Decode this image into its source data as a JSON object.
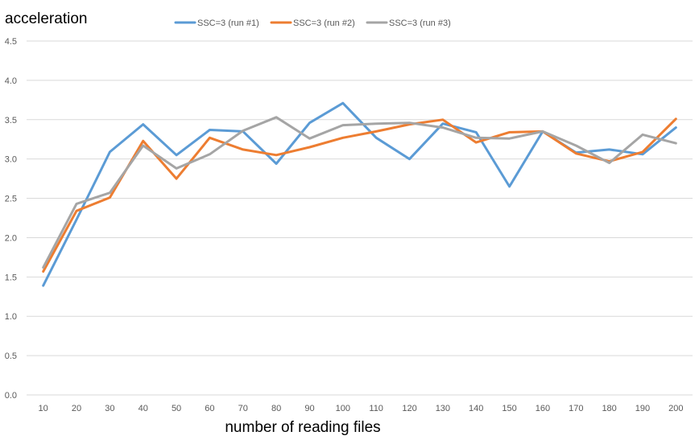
{
  "chart_data": {
    "type": "line",
    "title": "",
    "ylabel": "acceleration",
    "xlabel": "number of reading files",
    "ylim": [
      0,
      4.5
    ],
    "y_ticks": [
      "0.0",
      "0.5",
      "1.0",
      "1.5",
      "2.0",
      "2.5",
      "3.0",
      "3.5",
      "4.0",
      "4.5"
    ],
    "y_tick_values": [
      0,
      0.5,
      1.0,
      1.5,
      2.0,
      2.5,
      3.0,
      3.5,
      4.0,
      4.5
    ],
    "categories": [
      "10",
      "20",
      "30",
      "40",
      "50",
      "60",
      "70",
      "80",
      "90",
      "100",
      "110",
      "120",
      "130",
      "140",
      "150",
      "160",
      "170",
      "180",
      "190",
      "200"
    ],
    "grid": true,
    "legend_position": "top",
    "series": [
      {
        "name": "SSC=3 (run #1)",
        "color": "#5b9bd5",
        "values": [
          1.39,
          2.23,
          3.09,
          3.44,
          3.05,
          3.37,
          3.35,
          2.94,
          3.46,
          3.71,
          3.27,
          3.0,
          3.45,
          3.34,
          2.65,
          3.35,
          3.08,
          3.12,
          3.06,
          3.4
        ]
      },
      {
        "name": "SSC=3 (run #2)",
        "color": "#ed7d31",
        "values": [
          1.57,
          2.34,
          2.51,
          3.23,
          2.75,
          3.27,
          3.12,
          3.05,
          3.15,
          3.27,
          3.35,
          3.44,
          3.5,
          3.21,
          3.34,
          3.35,
          3.07,
          2.97,
          3.09,
          3.51
        ]
      },
      {
        "name": "SSC=3 (run #3)",
        "color": "#a5a5a5",
        "values": [
          1.62,
          2.43,
          2.57,
          3.17,
          2.88,
          3.06,
          3.36,
          3.53,
          3.26,
          3.43,
          3.45,
          3.46,
          3.4,
          3.27,
          3.26,
          3.35,
          3.17,
          2.95,
          3.31,
          3.2
        ]
      }
    ]
  }
}
